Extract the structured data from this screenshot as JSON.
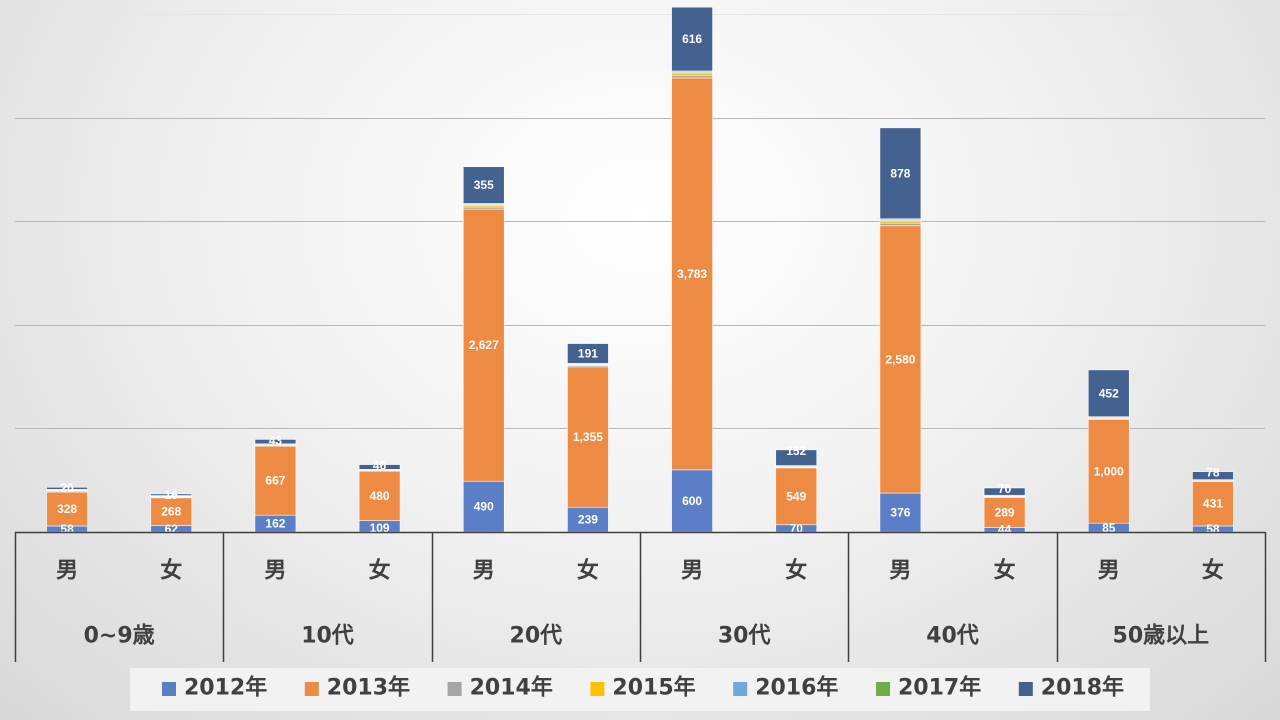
{
  "chart_data": {
    "type": "bar",
    "stacked": true,
    "title": "",
    "xlabel": "",
    "ylabel": "",
    "ylim": [
      0,
      5000
    ],
    "gridlines_y": [
      1000,
      2000,
      3000,
      4000,
      5000
    ],
    "grid": true,
    "y_axis_labels_shown": false,
    "legend_position": "bottom",
    "group_labels": [
      "0~9歳",
      "10代",
      "20代",
      "30代",
      "40代",
      "50歳以上"
    ],
    "sub_labels": [
      "男",
      "女"
    ],
    "categories": [
      "0~9歳 男",
      "0~9歳 女",
      "10代 男",
      "10代 女",
      "20代 男",
      "20代 女",
      "30代 男",
      "30代 女",
      "40代 男",
      "40代 女",
      "50歳以上 男",
      "50歳以上 女"
    ],
    "series": [
      {
        "name": "2012年",
        "color": "#5b7fc7",
        "values": [
          58,
          62,
          162,
          109,
          490,
          239,
          600,
          70,
          376,
          44,
          85,
          58
        ]
      },
      {
        "name": "2013年",
        "color": "#ed8b45",
        "values": [
          328,
          268,
          667,
          480,
          2627,
          1355,
          3783,
          549,
          2580,
          289,
          1000,
          431
        ]
      },
      {
        "name": "2014年",
        "color": "#a5a5a5",
        "values": [
          10,
          8,
          8,
          6,
          20,
          12,
          25,
          8,
          25,
          8,
          10,
          6
        ]
      },
      {
        "name": "2015年",
        "color": "#ffc000",
        "values": [
          8,
          6,
          6,
          4,
          18,
          10,
          22,
          6,
          22,
          6,
          8,
          4
        ]
      },
      {
        "name": "2016年",
        "color": "#6fa8dc",
        "values": [
          4,
          4,
          4,
          3,
          8,
          6,
          10,
          4,
          10,
          4,
          5,
          3
        ]
      },
      {
        "name": "2017年",
        "color": "#70ad47",
        "values": [
          4,
          4,
          4,
          3,
          8,
          6,
          10,
          4,
          10,
          4,
          5,
          3
        ]
      },
      {
        "name": "2018年",
        "color": "#44628f",
        "values": [
          20,
          16,
          43,
          46,
          355,
          191,
          616,
          152,
          878,
          70,
          452,
          78
        ]
      }
    ],
    "value_labels": {
      "2012年": [
        "58",
        "62",
        "162",
        "109",
        "490",
        "239",
        "600",
        "70",
        "376",
        "44",
        "85",
        "58"
      ],
      "2013年": [
        "328",
        "268",
        "667",
        "480",
        "2,627",
        "1,355",
        "3,783",
        "549",
        "2,580",
        "289",
        "1,000",
        "431"
      ],
      "2018年": [
        "20",
        "16",
        "43",
        "46",
        "355",
        "191",
        "616",
        "152",
        "878",
        "70",
        "452",
        "78"
      ]
    }
  }
}
